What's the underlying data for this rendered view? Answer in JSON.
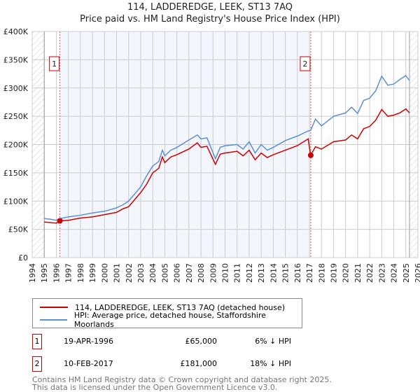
{
  "chart_data": {
    "type": "line",
    "title": "114, LADDEREDGE, LEEK, ST13 7AQ",
    "subtitle": "Price paid vs. HM Land Registry's House Price Index (HPI)",
    "xlim": [
      1994,
      2026
    ],
    "ylim": [
      0,
      400000
    ],
    "y_ticks": [
      {
        "v": 0,
        "label": "£0"
      },
      {
        "v": 50000,
        "label": "£50K"
      },
      {
        "v": 100000,
        "label": "£100K"
      },
      {
        "v": 150000,
        "label": "£150K"
      },
      {
        "v": 200000,
        "label": "£200K"
      },
      {
        "v": 250000,
        "label": "£250K"
      },
      {
        "v": 300000,
        "label": "£300K"
      },
      {
        "v": 350000,
        "label": "£350K"
      },
      {
        "v": 400000,
        "label": "£400K"
      }
    ],
    "x_ticks": [
      "1994",
      "1995",
      "1996",
      "1997",
      "1998",
      "1999",
      "2000",
      "2001",
      "2002",
      "2003",
      "2004",
      "2005",
      "2006",
      "2007",
      "2008",
      "2009",
      "2010",
      "2011",
      "2012",
      "2013",
      "2014",
      "2015",
      "2016",
      "2017",
      "2018",
      "2019",
      "2020",
      "2021",
      "2022",
      "2023",
      "2024",
      "2025",
      "2026"
    ],
    "grid": true,
    "data_range": [
      1995,
      2025.3
    ],
    "series": [
      {
        "name": "114, LADDEREDGE, LEEK, ST13 7AQ (detached house)",
        "color": "#cc0000",
        "x": [
          1995,
          1995.5,
          1996,
          1996.3,
          1997,
          1998,
          1999,
          2000,
          2001,
          2001.5,
          2002,
          2003,
          2003.5,
          2004,
          2004.5,
          2004.8,
          2005,
          2005.5,
          2006,
          2007,
          2007.7,
          2008,
          2008.5,
          2009.2,
          2009.6,
          2010,
          2011,
          2011.5,
          2012,
          2012.5,
          2013,
          2013.5,
          2014,
          2015,
          2016,
          2016.9,
          2017.1,
          2017.5,
          2018,
          2019,
          2020,
          2020.5,
          2021,
          2021.5,
          2022,
          2022.5,
          2023,
          2023.5,
          2024,
          2024.5,
          2025,
          2025.3
        ],
        "y": [
          63000,
          62000,
          61000,
          65000,
          66000,
          70000,
          72000,
          76000,
          80000,
          86000,
          90000,
          115000,
          130000,
          150000,
          158000,
          178000,
          168000,
          178000,
          182000,
          192000,
          203000,
          195000,
          197000,
          165000,
          183000,
          185000,
          188000,
          180000,
          190000,
          173000,
          185000,
          177000,
          182000,
          190000,
          198000,
          210000,
          181000,
          196000,
          192000,
          205000,
          208000,
          217000,
          210000,
          228000,
          232000,
          243000,
          262000,
          250000,
          252000,
          256000,
          263000,
          256000
        ]
      },
      {
        "name": "HPI: Average price, detached house, Staffordshire Moorlands",
        "color": "#5b8fd6",
        "x": [
          1995,
          1995.5,
          1996,
          1996.3,
          1997,
          1998,
          1999,
          2000,
          2001,
          2001.5,
          2002,
          2003,
          2003.5,
          2004,
          2004.5,
          2004.8,
          2005,
          2005.5,
          2006,
          2007,
          2007.7,
          2008,
          2008.5,
          2009.2,
          2009.6,
          2010,
          2011,
          2011.5,
          2012,
          2012.5,
          2013,
          2013.5,
          2014,
          2015,
          2016,
          2016.9,
          2017.1,
          2017.5,
          2018,
          2019,
          2020,
          2020.5,
          2021,
          2021.5,
          2022,
          2022.5,
          2023,
          2023.5,
          2024,
          2024.5,
          2025,
          2025.3
        ],
        "y": [
          69000,
          68000,
          66000,
          69000,
          72000,
          75000,
          79000,
          82000,
          88000,
          93000,
          100000,
          125000,
          145000,
          162000,
          170000,
          190000,
          180000,
          190000,
          195000,
          208000,
          217000,
          210000,
          212000,
          175000,
          195000,
          198000,
          200000,
          192000,
          205000,
          185000,
          200000,
          190000,
          195000,
          207000,
          215000,
          224000,
          225000,
          245000,
          233000,
          250000,
          256000,
          266000,
          255000,
          278000,
          282000,
          295000,
          321000,
          305000,
          307000,
          315000,
          322000,
          313000
        ]
      }
    ],
    "sales": [
      {
        "id": "1",
        "x": 1996.3,
        "y": 65000,
        "date": "19-APR-1996",
        "price": "£65,000",
        "diff": "6% ↓ HPI"
      },
      {
        "id": "2",
        "x": 2017.11,
        "y": 181000,
        "date": "10-FEB-2017",
        "price": "£181,000",
        "diff": "18% ↓ HPI"
      }
    ]
  },
  "footer": {
    "line1": "Contains HM Land Registry data © Crown copyright and database right 2025.",
    "line2": "This data is licensed under the Open Government Licence v3.0."
  }
}
